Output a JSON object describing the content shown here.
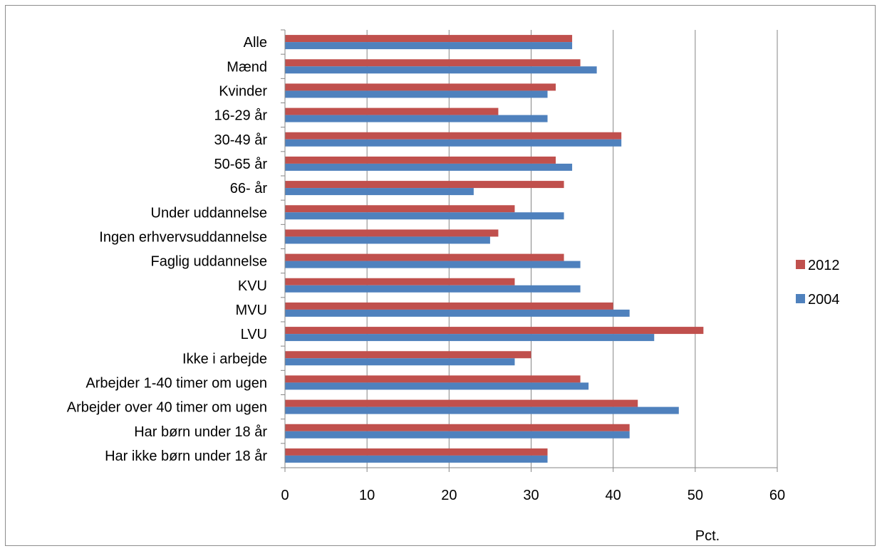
{
  "chart_data": {
    "type": "bar",
    "orientation": "horizontal",
    "categories": [
      "Alle",
      "Mænd",
      "Kvinder",
      "16-29 år",
      "30-49 år",
      "50-65 år",
      "66- år",
      "Under uddannelse",
      "Ingen erhvervsuddannelse",
      "Faglig uddannelse",
      "KVU",
      "MVU",
      "LVU",
      "Ikke i arbejde",
      "Arbejder 1-40 timer om ugen",
      "Arbejder over 40 timer om ugen",
      "Har børn under 18 år",
      "Har ikke børn under 18 år"
    ],
    "series": [
      {
        "name": "2012",
        "color": "#c0504d",
        "values": [
          35,
          36,
          33,
          26,
          41,
          33,
          34,
          28,
          26,
          34,
          28,
          40,
          51,
          30,
          36,
          43,
          42,
          32
        ]
      },
      {
        "name": "2004",
        "color": "#4f81bd",
        "values": [
          35,
          38,
          32,
          32,
          41,
          35,
          23,
          34,
          25,
          36,
          36,
          42,
          45,
          28,
          37,
          48,
          42,
          32
        ]
      }
    ],
    "xlim": [
      0,
      60
    ],
    "xticks": [
      0,
      10,
      20,
      30,
      40,
      50,
      60
    ],
    "xlabel": "Pct.",
    "ylabel": "",
    "title": "",
    "grid": true,
    "legend_position": "right"
  }
}
